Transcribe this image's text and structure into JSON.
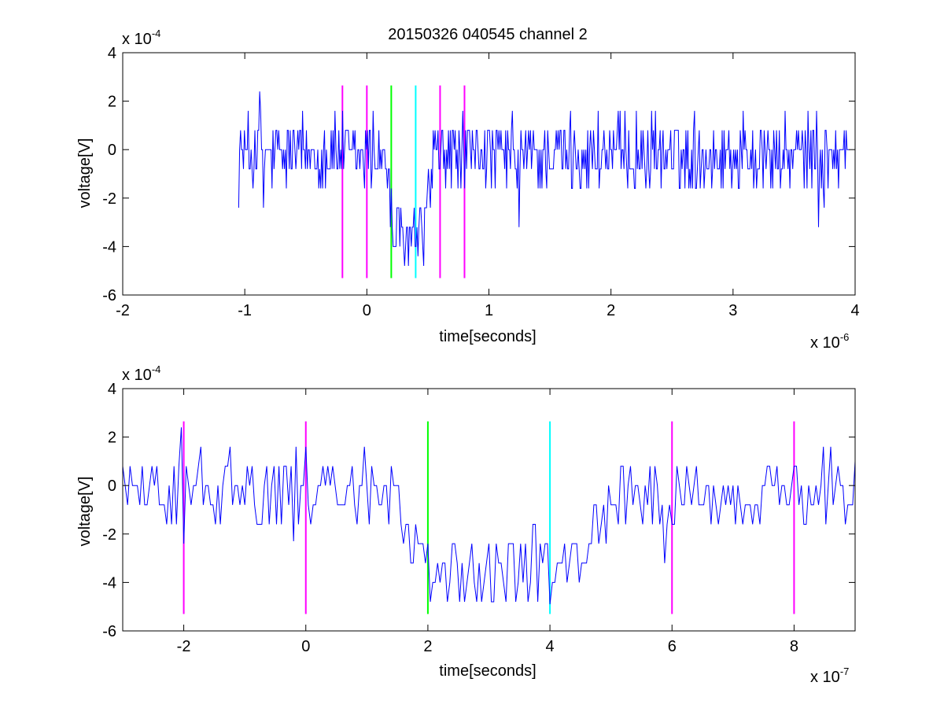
{
  "figure_title": "20150326 040545 channel 2",
  "colors": {
    "signal": "#0000ff",
    "marker_magenta": "#ff00ff",
    "marker_green": "#00ff00",
    "marker_cyan": "#00ffff",
    "axes": "#000000"
  },
  "chart_data": [
    {
      "type": "line",
      "title": "20150326 040545 channel 2",
      "xlabel": "time[seconds]",
      "ylabel": "voltage[V]",
      "x_exponent_label": "x 10",
      "x_exponent": "-6",
      "y_exponent_label": "x 10",
      "y_exponent": "-4",
      "xlim": [
        -2,
        4
      ],
      "ylim": [
        -6,
        4
      ],
      "xticks": [
        "-2",
        "-1",
        "0",
        "1",
        "2",
        "3",
        "4"
      ],
      "yticks": [
        "-6",
        "-4",
        "-2",
        "0",
        "2",
        "4"
      ],
      "x_tick_values": [
        -2,
        -1,
        0,
        1,
        2,
        3,
        4
      ],
      "y_tick_values": [
        -6,
        -4,
        -2,
        0,
        2,
        4
      ],
      "signal": {
        "x_start": -1.05,
        "x_end": 3.95,
        "noise_levels": [
          -2.4,
          -1.6,
          -0.8,
          0,
          0.8,
          1.6
        ],
        "notable_points": [
          [
            -0.88,
            2.4
          ],
          [
            -0.85,
            -2.4
          ],
          [
            0.05,
            1.6
          ],
          [
            0.3,
            -4.0
          ],
          [
            0.42,
            -4.4
          ],
          [
            1.25,
            -3.2
          ],
          [
            3.7,
            -3.2
          ],
          [
            3.75,
            -2.4
          ]
        ],
        "dip": {
          "start": 0.15,
          "bottom_start": 0.22,
          "bottom_end": 0.45,
          "end": 0.55,
          "level": -3.6
        }
      },
      "markers": [
        {
          "x": -0.2,
          "color": "magenta",
          "y_from": -5.3,
          "y_to": 2.65
        },
        {
          "x": 0.0,
          "color": "magenta",
          "y_from": -5.3,
          "y_to": 2.65
        },
        {
          "x": 0.2,
          "color": "green",
          "y_from": -5.3,
          "y_to": 2.65
        },
        {
          "x": 0.4,
          "color": "cyan",
          "y_from": -5.3,
          "y_to": 2.65
        },
        {
          "x": 0.6,
          "color": "magenta",
          "y_from": -5.3,
          "y_to": 2.65
        },
        {
          "x": 0.8,
          "color": "magenta",
          "y_from": -5.3,
          "y_to": 2.65
        }
      ]
    },
    {
      "type": "line",
      "title": "",
      "xlabel": "time[seconds]",
      "ylabel": "voltage[V]",
      "x_exponent_label": "x 10",
      "x_exponent": "-7",
      "y_exponent_label": "x 10",
      "y_exponent": "-4",
      "xlim": [
        -3,
        9
      ],
      "ylim": [
        -6,
        4
      ],
      "xticks": [
        "-2",
        "0",
        "2",
        "4",
        "6",
        "8"
      ],
      "yticks": [
        "-6",
        "-4",
        "-2",
        "0",
        "2",
        "4"
      ],
      "x_tick_values": [
        -2,
        0,
        2,
        4,
        6,
        8
      ],
      "y_tick_values": [
        -6,
        -4,
        -2,
        0,
        2,
        4
      ],
      "signal": {
        "x_start": -3,
        "x_end": 9,
        "noise_levels": [
          -2.4,
          -1.6,
          -0.8,
          0,
          0.8,
          1.6
        ],
        "notable_points": [
          [
            -2.05,
            2.4
          ],
          [
            -2.0,
            -2.4
          ],
          [
            -0.15,
            1.6
          ],
          [
            -0.2,
            -2.3
          ],
          [
            3.3,
            -4.8
          ],
          [
            4.0,
            -4.9
          ],
          [
            5.9,
            -3.2
          ],
          [
            8.6,
            1.6
          ],
          [
            9.0,
            1.0
          ]
        ],
        "dip": {
          "start": 1.4,
          "bottom_start": 1.8,
          "bottom_end": 4.3,
          "end": 5.3,
          "level": -3.4
        }
      },
      "markers": [
        {
          "x": -2,
          "color": "magenta",
          "y_from": -5.3,
          "y_to": 2.65
        },
        {
          "x": 0,
          "color": "magenta",
          "y_from": -5.3,
          "y_to": 2.65
        },
        {
          "x": 2,
          "color": "green",
          "y_from": -5.3,
          "y_to": 2.65
        },
        {
          "x": 4,
          "color": "cyan",
          "y_from": -5.3,
          "y_to": 2.65
        },
        {
          "x": 6,
          "color": "magenta",
          "y_from": -5.3,
          "y_to": 2.65
        },
        {
          "x": 8,
          "color": "magenta",
          "y_from": -5.3,
          "y_to": 2.65
        }
      ]
    }
  ]
}
